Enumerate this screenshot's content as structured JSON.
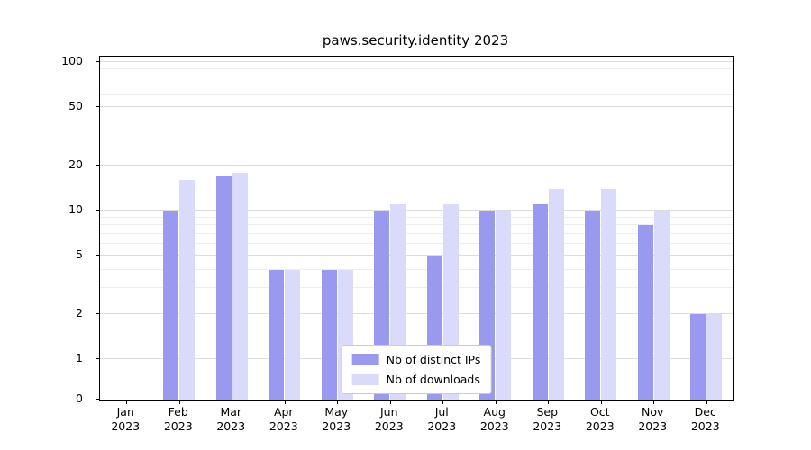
{
  "title": "paws.security.identity 2023",
  "chart_data": {
    "type": "bar",
    "title": "paws.security.identity 2023",
    "categories": [
      "Jan 2023",
      "Feb 2023",
      "Mar 2023",
      "Apr 2023",
      "May 2023",
      "Jun 2023",
      "Jul 2023",
      "Aug 2023",
      "Sep 2023",
      "Oct 2023",
      "Nov 2023",
      "Dec 2023"
    ],
    "series": [
      {
        "name": "Nb of distinct IPs",
        "color": "#9999f0",
        "values": [
          0,
          10,
          17,
          4,
          4,
          10,
          5,
          10,
          11,
          10,
          8,
          2
        ]
      },
      {
        "name": "Nb of downloads",
        "color": "#dadafa",
        "values": [
          0,
          16,
          18,
          4,
          4,
          11,
          11,
          10,
          14,
          14,
          10,
          2
        ]
      }
    ],
    "yticks": [
      0,
      1,
      2,
      5,
      10,
      20,
      50,
      100
    ],
    "yscale": "symlog",
    "ylim": [
      0,
      110
    ],
    "xlabel": "",
    "ylabel": "",
    "grid": true,
    "legend_position": "lower center"
  }
}
